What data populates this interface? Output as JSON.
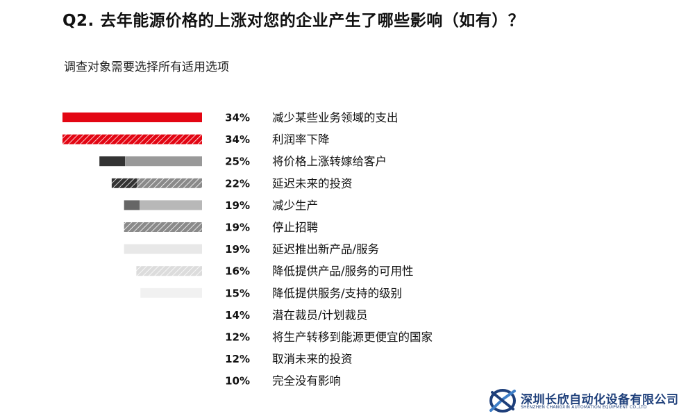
{
  "title": "Q2. 去年能源价格的上涨对您的企业产生了哪些影响（如有）？",
  "subtitle": "调查对象需要选择所有适用选项",
  "chart_data": {
    "type": "bar",
    "orientation": "horizontal",
    "categories": [
      "减少某些业务领域的支出",
      "利润率下降",
      "将价格上涨转嫁给客户",
      "延迟未来的投资",
      "减少生产",
      "停止招聘",
      "延迟推出新产品/服务",
      "降低提供产品/服务的可用性",
      "降低提供服务/支持的级别",
      "潜在裁员/计划裁员",
      "将生产转移到能源更便宜的国家",
      "取消未来的投资",
      "完全没有影响"
    ],
    "values": [
      34,
      34,
      25,
      22,
      19,
      19,
      19,
      16,
      15,
      14,
      12,
      12,
      10
    ],
    "value_labels": [
      "34%",
      "34%",
      "25%",
      "22%",
      "19%",
      "19%",
      "19%",
      "16%",
      "15%",
      "14%",
      "12%",
      "12%",
      "10%"
    ],
    "value_suffix": "%",
    "legend": "none",
    "grid": false
  },
  "watermark": {
    "name": "深圳长欣自动化设备有限公司",
    "subtitle": "SHENZHEN CHANGXIN AUTOMATION EQUIPMENT CO.,LTD",
    "colors": {
      "primary": "#1e3f7a",
      "accent": "#3f7fc8"
    }
  },
  "colors": {
    "red": "#e30613",
    "dark_gray": "#333333",
    "mid_gray": "#999999",
    "light_gray": "#b8b8b8",
    "pale_gray": "#e5e5e5",
    "very_pale_gray": "#f0f0f0"
  }
}
